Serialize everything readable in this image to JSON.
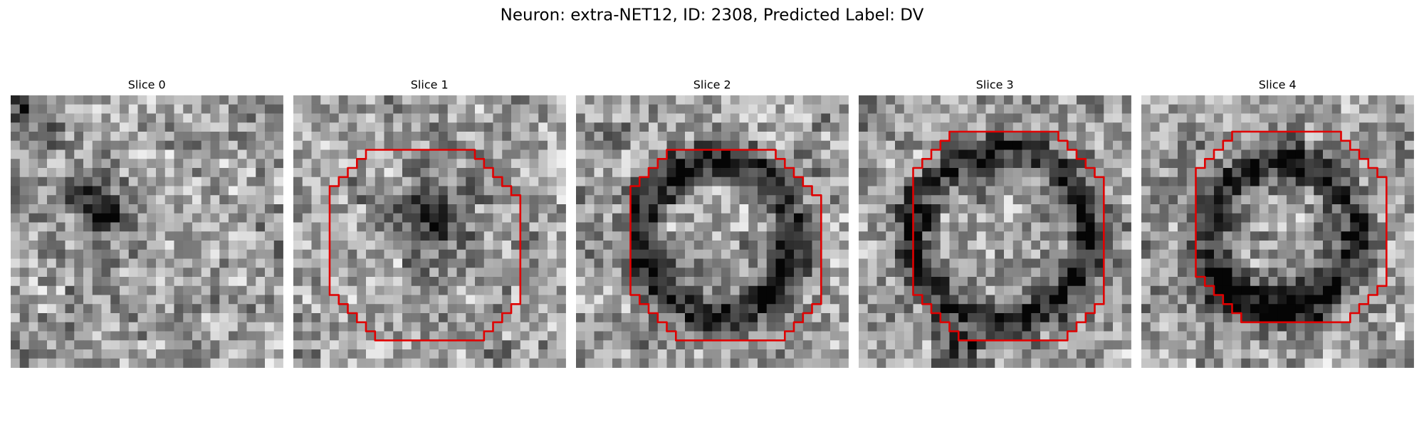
{
  "header": {
    "title": "Neuron: extra-NET12, ID: 2308, Predicted Label: DV"
  },
  "panels": [
    {
      "title": "Slice 0"
    },
    {
      "title": "Slice 1"
    },
    {
      "title": "Slice 2"
    },
    {
      "title": "Slice 3"
    },
    {
      "title": "Slice 4"
    }
  ]
}
